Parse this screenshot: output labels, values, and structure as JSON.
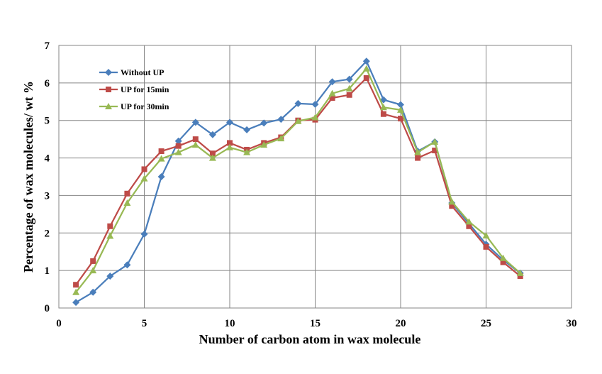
{
  "chart_data": {
    "type": "line",
    "title": "",
    "xlabel": "Number of carbon atom in wax molecule",
    "ylabel": "Percentage of wax molecules/  wt  %",
    "xlim": [
      0,
      30
    ],
    "ylim": [
      0,
      7
    ],
    "xticks": [
      0,
      5,
      10,
      15,
      20,
      25,
      30
    ],
    "yticks": [
      0,
      1,
      2,
      3,
      4,
      5,
      6,
      7
    ],
    "grid": true,
    "legend_position": "top-left",
    "x": [
      1,
      2,
      3,
      4,
      5,
      6,
      7,
      8,
      9,
      10,
      11,
      12,
      13,
      14,
      15,
      16,
      17,
      18,
      19,
      20,
      21,
      22,
      23,
      24,
      25,
      26,
      27
    ],
    "series": [
      {
        "name": "Without UP",
        "color": "#4a7ebb",
        "marker": "diamond",
        "values": [
          0.15,
          0.42,
          0.85,
          1.15,
          1.97,
          3.5,
          4.45,
          4.95,
          4.62,
          4.95,
          4.75,
          4.93,
          5.03,
          5.45,
          5.43,
          6.03,
          6.1,
          6.58,
          5.55,
          5.42,
          4.18,
          4.43,
          2.8,
          2.25,
          1.7,
          1.28,
          0.93
        ]
      },
      {
        "name": "UP for 15min",
        "color": "#be4b48",
        "marker": "square",
        "values": [
          0.62,
          1.25,
          2.18,
          3.05,
          3.7,
          4.18,
          4.32,
          4.5,
          4.12,
          4.4,
          4.22,
          4.4,
          4.55,
          5.0,
          5.02,
          5.6,
          5.68,
          6.13,
          5.17,
          5.05,
          4.0,
          4.2,
          2.72,
          2.18,
          1.63,
          1.22,
          0.85
        ]
      },
      {
        "name": "UP for 30min",
        "color": "#98b954",
        "marker": "triangle",
        "values": [
          0.42,
          1.0,
          1.92,
          2.8,
          3.45,
          3.98,
          4.15,
          4.35,
          4.0,
          4.28,
          4.15,
          4.35,
          4.52,
          4.98,
          5.08,
          5.72,
          5.85,
          6.38,
          5.35,
          5.28,
          4.15,
          4.43,
          2.83,
          2.3,
          1.93,
          1.33,
          0.93
        ]
      }
    ]
  }
}
